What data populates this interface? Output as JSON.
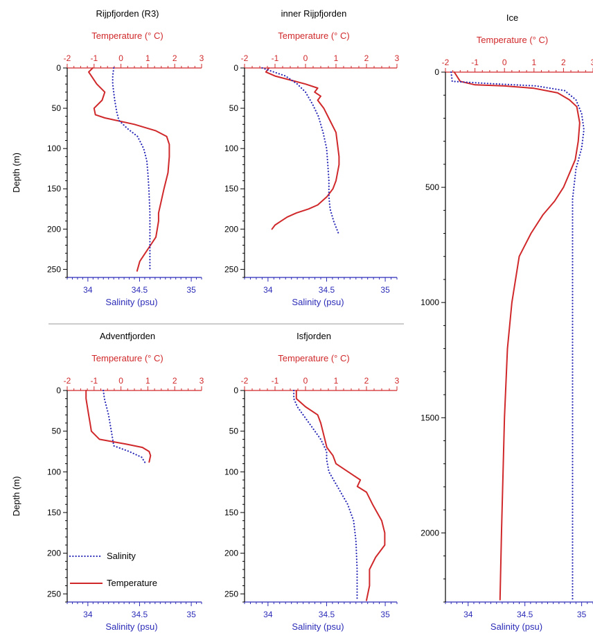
{
  "colors": {
    "temperature": "#d0282a",
    "salinity": "#2b2bb8",
    "axis": "#000000",
    "divider": "#9a9a9a"
  },
  "legend": {
    "salinity": "Salinity",
    "temperature": "Temperature"
  },
  "chart_data": [
    {
      "type": "line",
      "title": "Rijpfjorden (R3)",
      "xlabel_top": "Temperature (° C)",
      "xlabel_bottom": "Salinity (psu)",
      "ylabel": "Depth (m)",
      "temp_xlim": [
        -2,
        3
      ],
      "temp_ticks": [
        -2,
        -1,
        0,
        1,
        2,
        3
      ],
      "sal_xlim": [
        33.8,
        35.1
      ],
      "sal_ticks": [
        34,
        34.5,
        35
      ],
      "ylim": [
        0,
        260
      ],
      "yticks": [
        0,
        50,
        100,
        150,
        200,
        250
      ],
      "series": [
        {
          "name": "Temperature",
          "variable": "temperature",
          "style": "solid",
          "x": [
            -1.05,
            -1.2,
            -1.1,
            -0.9,
            -0.6,
            -0.7,
            -1.0,
            -0.95,
            -0.6,
            0.5,
            1.3,
            1.7,
            1.8,
            1.8,
            1.75,
            1.6,
            1.5,
            1.4,
            1.4,
            1.35,
            1.3,
            1.1,
            0.9,
            0.7,
            0.6
          ],
          "y": [
            0,
            5,
            10,
            20,
            30,
            40,
            50,
            58,
            62,
            70,
            78,
            85,
            95,
            110,
            130,
            150,
            165,
            180,
            190,
            200,
            210,
            220,
            230,
            240,
            252
          ]
        },
        {
          "name": "Salinity",
          "variable": "salinity",
          "style": "dotted",
          "x": [
            34.25,
            34.24,
            34.24,
            34.26,
            34.28,
            34.3,
            34.38,
            34.48,
            34.54,
            34.57,
            34.58,
            34.59,
            34.6,
            34.6,
            34.6,
            34.6
          ],
          "y": [
            0,
            10,
            20,
            40,
            55,
            65,
            75,
            85,
            100,
            115,
            130,
            150,
            180,
            210,
            230,
            252
          ]
        }
      ]
    },
    {
      "type": "line",
      "title": "inner Rijpfjorden",
      "xlabel_top": "Temperature (° C)",
      "xlabel_bottom": "Salinity (psu)",
      "ylabel": "",
      "temp_xlim": [
        -2,
        3
      ],
      "temp_ticks": [
        -2,
        -1,
        0,
        1,
        2,
        3
      ],
      "sal_xlim": [
        33.8,
        35.1
      ],
      "sal_ticks": [
        34,
        34.5,
        35
      ],
      "ylim": [
        0,
        260
      ],
      "yticks": [
        0,
        50,
        100,
        150,
        200,
        250
      ],
      "series": [
        {
          "name": "Temperature",
          "variable": "temperature",
          "style": "solid",
          "x": [
            -1.2,
            -1.3,
            -1.0,
            -0.5,
            0.0,
            0.4,
            0.3,
            0.5,
            0.4,
            0.6,
            0.8,
            1.0,
            1.05,
            1.1,
            1.1,
            1.05,
            1.0,
            0.9,
            0.7,
            0.4,
            0.1,
            -0.3,
            -0.6,
            -0.8,
            -1.0,
            -1.1
          ],
          "y": [
            0,
            5,
            10,
            15,
            20,
            25,
            30,
            35,
            40,
            50,
            65,
            80,
            95,
            110,
            120,
            130,
            140,
            150,
            160,
            170,
            175,
            180,
            185,
            190,
            195,
            200
          ]
        },
        {
          "name": "Salinity",
          "variable": "salinity",
          "style": "dotted",
          "x": [
            33.95,
            34.05,
            34.15,
            34.25,
            34.32,
            34.38,
            34.43,
            34.47,
            34.5,
            34.51,
            34.52,
            34.52,
            34.53,
            34.56,
            34.6
          ],
          "y": [
            0,
            5,
            10,
            20,
            30,
            45,
            60,
            80,
            100,
            120,
            140,
            160,
            175,
            190,
            205
          ]
        }
      ]
    },
    {
      "type": "line",
      "title": "Ice",
      "xlabel_top": "Temperature (° C)",
      "xlabel_bottom": "Salinity (psu)",
      "ylabel": "",
      "temp_xlim": [
        -2,
        3
      ],
      "temp_ticks": [
        -2,
        -1,
        0,
        1,
        2,
        3
      ],
      "sal_xlim": [
        33.8,
        35.1
      ],
      "sal_ticks": [
        34,
        34.5,
        35
      ],
      "ylim": [
        0,
        2300
      ],
      "yticks": [
        0,
        500,
        1000,
        1500,
        2000
      ],
      "series": [
        {
          "name": "Temperature",
          "variable": "temperature",
          "style": "solid",
          "x": [
            -1.7,
            -1.5,
            -1.0,
            0.0,
            1.0,
            1.8,
            2.2,
            2.45,
            2.55,
            2.5,
            2.4,
            2.2,
            2.0,
            1.7,
            1.3,
            0.9,
            0.5,
            0.25,
            0.1,
            0.0,
            -0.1,
            -0.15
          ],
          "y": [
            0,
            40,
            55,
            60,
            70,
            90,
            120,
            150,
            220,
            300,
            380,
            440,
            500,
            560,
            620,
            700,
            800,
            1000,
            1200,
            1500,
            2000,
            2290
          ]
        },
        {
          "name": "Salinity",
          "variable": "salinity",
          "style": "dotted",
          "x": [
            33.85,
            33.86,
            34.2,
            34.6,
            34.85,
            34.95,
            35.0,
            35.02,
            35.0,
            34.95,
            34.92,
            34.92,
            34.92,
            34.92
          ],
          "y": [
            0,
            40,
            50,
            60,
            80,
            120,
            180,
            250,
            330,
            420,
            550,
            1000,
            1800,
            2290
          ]
        }
      ]
    },
    {
      "type": "line",
      "title": "Adventfjorden",
      "xlabel_top": "Temperature (° C)",
      "xlabel_bottom": "Salinity (psu)",
      "ylabel": "Depth (m)",
      "temp_xlim": [
        -2,
        3
      ],
      "temp_ticks": [
        -2,
        -1,
        0,
        1,
        2,
        3
      ],
      "sal_xlim": [
        33.8,
        35.1
      ],
      "sal_ticks": [
        34,
        34.5,
        35
      ],
      "ylim": [
        0,
        260
      ],
      "yticks": [
        0,
        50,
        100,
        150,
        200,
        250
      ],
      "series": [
        {
          "name": "Temperature",
          "variable": "temperature",
          "style": "solid",
          "x": [
            -1.3,
            -1.3,
            -1.25,
            -1.2,
            -1.15,
            -1.1,
            -0.8,
            0.2,
            0.8,
            1.05,
            1.1,
            1.05
          ],
          "y": [
            0,
            10,
            20,
            30,
            40,
            50,
            60,
            66,
            70,
            75,
            80,
            88
          ]
        },
        {
          "name": "Salinity",
          "variable": "salinity",
          "style": "dotted",
          "x": [
            34.15,
            34.16,
            34.18,
            34.2,
            34.22,
            34.24,
            34.25,
            34.4,
            34.52,
            34.56
          ],
          "y": [
            0,
            10,
            20,
            30,
            45,
            60,
            68,
            75,
            82,
            90
          ]
        }
      ]
    },
    {
      "type": "line",
      "title": "Isfjorden",
      "xlabel_top": "Temperature (° C)",
      "xlabel_bottom": "Salinity (psu)",
      "ylabel": "",
      "temp_xlim": [
        -2,
        3
      ],
      "temp_ticks": [
        -2,
        -1,
        0,
        1,
        2,
        3
      ],
      "sal_xlim": [
        33.8,
        35.1
      ],
      "sal_ticks": [
        34,
        34.5,
        35
      ],
      "ylim": [
        0,
        260
      ],
      "yticks": [
        0,
        50,
        100,
        150,
        200,
        250
      ],
      "series": [
        {
          "name": "Temperature",
          "variable": "temperature",
          "style": "solid",
          "x": [
            -0.3,
            -0.3,
            0.0,
            0.4,
            0.5,
            0.6,
            0.7,
            0.9,
            1.0,
            1.4,
            1.8,
            1.7,
            2.0,
            2.2,
            2.5,
            2.6,
            2.6,
            2.3,
            2.1,
            2.1,
            2.0
          ],
          "y": [
            0,
            10,
            20,
            30,
            40,
            55,
            70,
            80,
            90,
            100,
            110,
            118,
            125,
            140,
            160,
            175,
            190,
            205,
            220,
            240,
            258
          ]
        },
        {
          "name": "Salinity",
          "variable": "salinity",
          "style": "dotted",
          "x": [
            34.22,
            34.22,
            34.25,
            34.35,
            34.45,
            34.5,
            34.5,
            34.52,
            34.6,
            34.68,
            34.73,
            34.75,
            34.76,
            34.76
          ],
          "y": [
            0,
            10,
            20,
            40,
            60,
            75,
            85,
            100,
            120,
            140,
            160,
            185,
            220,
            258
          ]
        }
      ]
    }
  ]
}
